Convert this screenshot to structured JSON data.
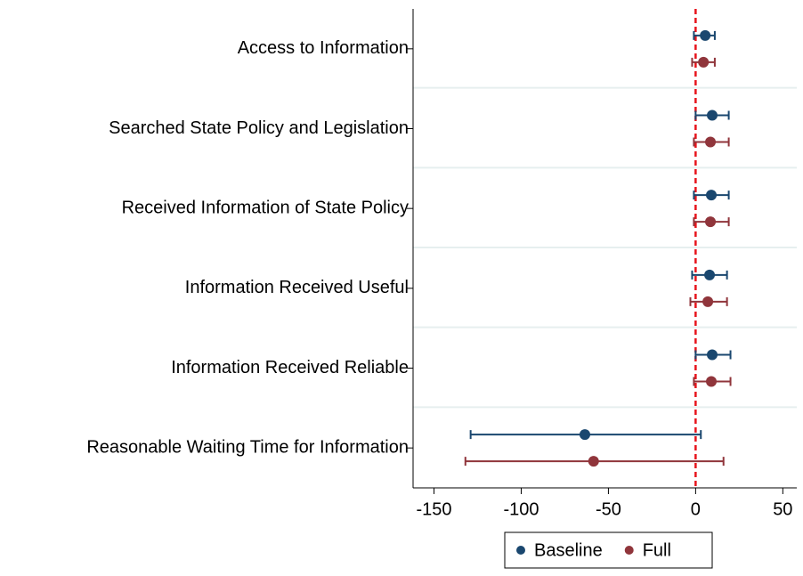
{
  "chart_data": {
    "type": "coefplot",
    "categories": [
      "Access to Information",
      "Searched State Policy and Legislation",
      "Received Information of State Policy",
      "Information Received Useful",
      "Information Received Reliable",
      "Reasonable Waiting Time for Information"
    ],
    "series": [
      {
        "name": "Baseline",
        "color": "#1a476f",
        "values": [
          5.5,
          9.5,
          9,
          8,
          9.5,
          -63.5
        ],
        "lower": [
          -1,
          0,
          -1,
          -2,
          0,
          -129
        ],
        "upper": [
          11,
          19,
          19,
          18,
          20,
          3
        ]
      },
      {
        "name": "Full",
        "color": "#90353b",
        "values": [
          4.5,
          8.5,
          8.5,
          7,
          9,
          -58.5
        ],
        "lower": [
          -2,
          -1,
          -1,
          -3,
          -1,
          -132
        ],
        "upper": [
          11,
          19,
          19,
          18,
          20,
          16
        ]
      }
    ],
    "xlim": [
      -162,
      58
    ],
    "xticks": [
      -150,
      -100,
      -50,
      0,
      50
    ],
    "refline": 0,
    "refline_color": "#e8141c",
    "legend": "bottom"
  }
}
